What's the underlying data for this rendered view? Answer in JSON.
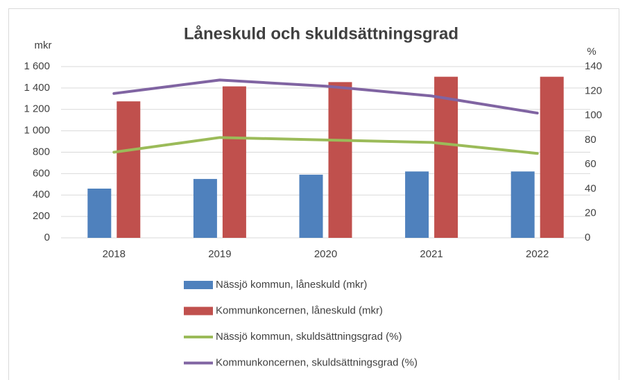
{
  "chart_data": {
    "type": "bar",
    "title": "Låneskuld och skuldsättningsgrad",
    "y_label": "mkr",
    "y2_label": "%",
    "categories": [
      "2018",
      "2019",
      "2020",
      "2021",
      "2022"
    ],
    "series": [
      {
        "name": "Nässjö kommun, låneskuld (mkr)",
        "type": "bar",
        "color": "#4f81bd",
        "values": [
          460,
          550,
          590,
          620,
          620
        ]
      },
      {
        "name": "Kommunkoncernen, låneskuld (mkr)",
        "type": "bar",
        "color": "#c0504d",
        "values": [
          1275,
          1415,
          1455,
          1505,
          1505
        ]
      },
      {
        "name": "Nässjö kommun, skuldsättningsgrad (%)",
        "type": "line",
        "axis": "y2",
        "color": "#9bbb59",
        "values": [
          70,
          82,
          80,
          78,
          69
        ]
      },
      {
        "name": "Kommunkoncernen, skuldsättningsgrad (%)",
        "type": "line",
        "axis": "y2",
        "color": "#8064a2",
        "values": [
          118,
          129,
          124,
          116,
          102
        ]
      }
    ],
    "ylim": [
      0,
      1600
    ],
    "yticks": [
      0,
      200,
      400,
      600,
      800,
      {
        "value": 1000,
        "label": "1 000"
      },
      {
        "value": 1200,
        "label": "1 200"
      },
      {
        "value": 1400,
        "label": "1 400"
      },
      {
        "value": 1600,
        "label": "1 600"
      }
    ],
    "y2lim": [
      0,
      140
    ],
    "y2ticks": [
      0,
      20,
      40,
      60,
      80,
      100,
      120,
      140
    ],
    "grid": true,
    "legend": "bottom"
  }
}
